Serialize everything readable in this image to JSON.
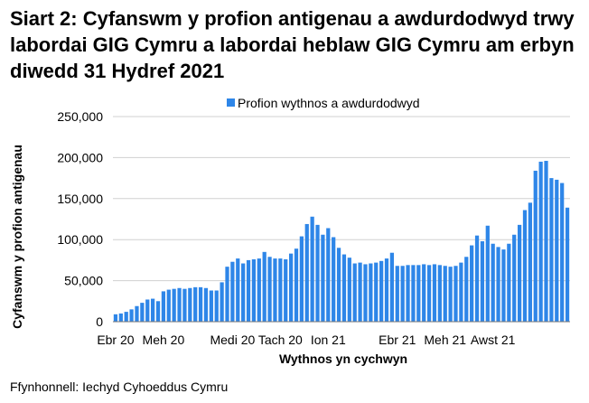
{
  "title": "Siart 2: Cyfanswm y profion antigenau a awdurdodwyd trwy labordai GIG Cymru a labordai heblaw GIG Cymru am erbyn diwedd 31 Hydref 2021",
  "source": "Ffynhonnell: Iechyd Cyhoeddus Cymru",
  "colors": {
    "bar": "#2e86e8",
    "grid": "#d0d0d0",
    "axis": "#777777"
  },
  "chart_data": {
    "type": "bar",
    "title": "",
    "xlabel": "Wythnos yn cychwyn",
    "ylabel": "Cyfanswm y profion antigenau",
    "ylim": [
      0,
      250000
    ],
    "yticks": [
      0,
      50000,
      100000,
      150000,
      200000,
      250000
    ],
    "ytick_labels": [
      "0",
      "50,000",
      "100,000",
      "150,000",
      "200,000",
      "250,000"
    ],
    "xtick_labels": [
      "Ebr 20",
      "Meh 20",
      "Medi 20",
      "Tach 20",
      "Ion 21",
      "Ebr 21",
      "Meh 21",
      "Awst 21"
    ],
    "xtick_bar_index": [
      0,
      9,
      22,
      31,
      40,
      53,
      62,
      71
    ],
    "grid": true,
    "legend": "top-center",
    "series": [
      {
        "name": "Profion wythnos a awdurdodwyd",
        "values": [
          9000,
          10000,
          12000,
          15000,
          19000,
          23000,
          27000,
          28000,
          25000,
          37000,
          39000,
          40000,
          41000,
          40000,
          41000,
          42000,
          42000,
          41000,
          38000,
          38000,
          48000,
          67000,
          73000,
          77000,
          71000,
          75000,
          76000,
          77000,
          85000,
          79000,
          77000,
          77000,
          76000,
          83000,
          89000,
          104000,
          119000,
          128000,
          118000,
          106000,
          114000,
          103000,
          90000,
          82000,
          78000,
          71000,
          72000,
          70000,
          71000,
          72000,
          74000,
          77000,
          84000,
          68000,
          68000,
          69000,
          69000,
          69000,
          70000,
          69000,
          70000,
          69000,
          68000,
          67000,
          68000,
          72000,
          79000,
          93000,
          105000,
          98000,
          117000,
          95000,
          91000,
          88000,
          95000,
          106000,
          118000,
          136000,
          145000,
          184000,
          195000,
          196000,
          175000,
          173000,
          169000,
          139000
        ]
      }
    ]
  }
}
